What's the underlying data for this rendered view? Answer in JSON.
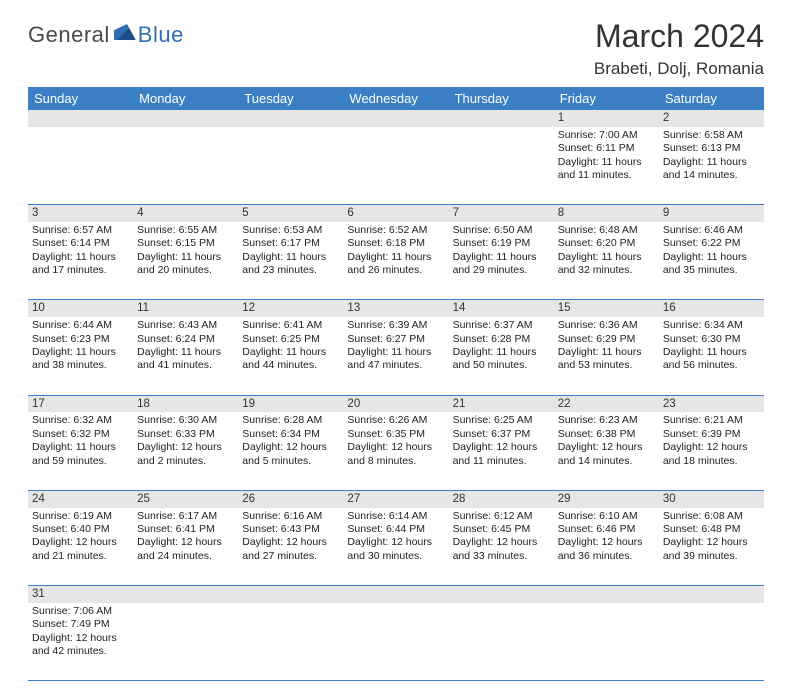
{
  "logo": {
    "part1": "General",
    "part2": "Blue"
  },
  "header": {
    "title": "March 2024",
    "location": "Brabeti, Dolj, Romania"
  },
  "colors": {
    "header_bg": "#3b7fc4",
    "header_text": "#ffffff",
    "daynum_bg": "#e6e6e6",
    "cell_border": "#3b7fc4",
    "logo_gray": "#4a4a4a",
    "logo_blue": "#2f6fb3"
  },
  "typography": {
    "title_fontsize": 32,
    "location_fontsize": 17,
    "dayheader_fontsize": 13,
    "cell_fontsize": 10.5
  },
  "day_headers": [
    "Sunday",
    "Monday",
    "Tuesday",
    "Wednesday",
    "Thursday",
    "Friday",
    "Saturday"
  ],
  "weeks": [
    [
      null,
      null,
      null,
      null,
      null,
      {
        "n": "1",
        "sr": "Sunrise: 7:00 AM",
        "ss": "Sunset: 6:11 PM",
        "d1": "Daylight: 11 hours",
        "d2": "and 11 minutes."
      },
      {
        "n": "2",
        "sr": "Sunrise: 6:58 AM",
        "ss": "Sunset: 6:13 PM",
        "d1": "Daylight: 11 hours",
        "d2": "and 14 minutes."
      }
    ],
    [
      {
        "n": "3",
        "sr": "Sunrise: 6:57 AM",
        "ss": "Sunset: 6:14 PM",
        "d1": "Daylight: 11 hours",
        "d2": "and 17 minutes."
      },
      {
        "n": "4",
        "sr": "Sunrise: 6:55 AM",
        "ss": "Sunset: 6:15 PM",
        "d1": "Daylight: 11 hours",
        "d2": "and 20 minutes."
      },
      {
        "n": "5",
        "sr": "Sunrise: 6:53 AM",
        "ss": "Sunset: 6:17 PM",
        "d1": "Daylight: 11 hours",
        "d2": "and 23 minutes."
      },
      {
        "n": "6",
        "sr": "Sunrise: 6:52 AM",
        "ss": "Sunset: 6:18 PM",
        "d1": "Daylight: 11 hours",
        "d2": "and 26 minutes."
      },
      {
        "n": "7",
        "sr": "Sunrise: 6:50 AM",
        "ss": "Sunset: 6:19 PM",
        "d1": "Daylight: 11 hours",
        "d2": "and 29 minutes."
      },
      {
        "n": "8",
        "sr": "Sunrise: 6:48 AM",
        "ss": "Sunset: 6:20 PM",
        "d1": "Daylight: 11 hours",
        "d2": "and 32 minutes."
      },
      {
        "n": "9",
        "sr": "Sunrise: 6:46 AM",
        "ss": "Sunset: 6:22 PM",
        "d1": "Daylight: 11 hours",
        "d2": "and 35 minutes."
      }
    ],
    [
      {
        "n": "10",
        "sr": "Sunrise: 6:44 AM",
        "ss": "Sunset: 6:23 PM",
        "d1": "Daylight: 11 hours",
        "d2": "and 38 minutes."
      },
      {
        "n": "11",
        "sr": "Sunrise: 6:43 AM",
        "ss": "Sunset: 6:24 PM",
        "d1": "Daylight: 11 hours",
        "d2": "and 41 minutes."
      },
      {
        "n": "12",
        "sr": "Sunrise: 6:41 AM",
        "ss": "Sunset: 6:25 PM",
        "d1": "Daylight: 11 hours",
        "d2": "and 44 minutes."
      },
      {
        "n": "13",
        "sr": "Sunrise: 6:39 AM",
        "ss": "Sunset: 6:27 PM",
        "d1": "Daylight: 11 hours",
        "d2": "and 47 minutes."
      },
      {
        "n": "14",
        "sr": "Sunrise: 6:37 AM",
        "ss": "Sunset: 6:28 PM",
        "d1": "Daylight: 11 hours",
        "d2": "and 50 minutes."
      },
      {
        "n": "15",
        "sr": "Sunrise: 6:36 AM",
        "ss": "Sunset: 6:29 PM",
        "d1": "Daylight: 11 hours",
        "d2": "and 53 minutes."
      },
      {
        "n": "16",
        "sr": "Sunrise: 6:34 AM",
        "ss": "Sunset: 6:30 PM",
        "d1": "Daylight: 11 hours",
        "d2": "and 56 minutes."
      }
    ],
    [
      {
        "n": "17",
        "sr": "Sunrise: 6:32 AM",
        "ss": "Sunset: 6:32 PM",
        "d1": "Daylight: 11 hours",
        "d2": "and 59 minutes."
      },
      {
        "n": "18",
        "sr": "Sunrise: 6:30 AM",
        "ss": "Sunset: 6:33 PM",
        "d1": "Daylight: 12 hours",
        "d2": "and 2 minutes."
      },
      {
        "n": "19",
        "sr": "Sunrise: 6:28 AM",
        "ss": "Sunset: 6:34 PM",
        "d1": "Daylight: 12 hours",
        "d2": "and 5 minutes."
      },
      {
        "n": "20",
        "sr": "Sunrise: 6:26 AM",
        "ss": "Sunset: 6:35 PM",
        "d1": "Daylight: 12 hours",
        "d2": "and 8 minutes."
      },
      {
        "n": "21",
        "sr": "Sunrise: 6:25 AM",
        "ss": "Sunset: 6:37 PM",
        "d1": "Daylight: 12 hours",
        "d2": "and 11 minutes."
      },
      {
        "n": "22",
        "sr": "Sunrise: 6:23 AM",
        "ss": "Sunset: 6:38 PM",
        "d1": "Daylight: 12 hours",
        "d2": "and 14 minutes."
      },
      {
        "n": "23",
        "sr": "Sunrise: 6:21 AM",
        "ss": "Sunset: 6:39 PM",
        "d1": "Daylight: 12 hours",
        "d2": "and 18 minutes."
      }
    ],
    [
      {
        "n": "24",
        "sr": "Sunrise: 6:19 AM",
        "ss": "Sunset: 6:40 PM",
        "d1": "Daylight: 12 hours",
        "d2": "and 21 minutes."
      },
      {
        "n": "25",
        "sr": "Sunrise: 6:17 AM",
        "ss": "Sunset: 6:41 PM",
        "d1": "Daylight: 12 hours",
        "d2": "and 24 minutes."
      },
      {
        "n": "26",
        "sr": "Sunrise: 6:16 AM",
        "ss": "Sunset: 6:43 PM",
        "d1": "Daylight: 12 hours",
        "d2": "and 27 minutes."
      },
      {
        "n": "27",
        "sr": "Sunrise: 6:14 AM",
        "ss": "Sunset: 6:44 PM",
        "d1": "Daylight: 12 hours",
        "d2": "and 30 minutes."
      },
      {
        "n": "28",
        "sr": "Sunrise: 6:12 AM",
        "ss": "Sunset: 6:45 PM",
        "d1": "Daylight: 12 hours",
        "d2": "and 33 minutes."
      },
      {
        "n": "29",
        "sr": "Sunrise: 6:10 AM",
        "ss": "Sunset: 6:46 PM",
        "d1": "Daylight: 12 hours",
        "d2": "and 36 minutes."
      },
      {
        "n": "30",
        "sr": "Sunrise: 6:08 AM",
        "ss": "Sunset: 6:48 PM",
        "d1": "Daylight: 12 hours",
        "d2": "and 39 minutes."
      }
    ],
    [
      {
        "n": "31",
        "sr": "Sunrise: 7:06 AM",
        "ss": "Sunset: 7:49 PM",
        "d1": "Daylight: 12 hours",
        "d2": "and 42 minutes."
      },
      null,
      null,
      null,
      null,
      null,
      null
    ]
  ]
}
